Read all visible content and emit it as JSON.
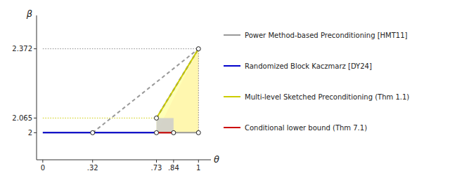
{
  "chart_data": {
    "type": "line",
    "xlabel": "θ",
    "ylabel": "β",
    "xlim": [
      -0.04,
      1.08
    ],
    "ylim": [
      1.88,
      2.52
    ],
    "xticks": [
      0,
      {
        "value": 0.32,
        "label": ".32"
      },
      {
        "value": 0.73,
        "label": ".73"
      },
      {
        "value": 0.84,
        "label": ".84"
      },
      1
    ],
    "yticks": [
      2,
      2.065,
      2.372
    ],
    "series": [
      {
        "type": "area",
        "color": "#FFBBBB",
        "x": [
          0.73,
          1.0,
          1.0
        ],
        "values": [
          2.0,
          2.0,
          2.372
        ]
      },
      {
        "type": "area",
        "color": "#FFFFAA",
        "x": [
          0.73,
          0.73,
          1.0,
          1.0
        ],
        "values": [
          2.0,
          2.065,
          2.372,
          2.0
        ]
      },
      {
        "type": "area",
        "color": "#CCCCCC",
        "x": [
          0.73,
          0.84,
          0.84,
          0.73
        ],
        "values": [
          2.0,
          2.0,
          2.065,
          2.065
        ]
      },
      {
        "color": "#888888",
        "line_style": "dotted",
        "x": [
          0,
          1.0
        ],
        "values": [
          2.372,
          2.372
        ]
      },
      {
        "color": "#CCCC00",
        "line_style": "dotted",
        "x": [
          0,
          0.73
        ],
        "values": [
          2.065,
          2.065
        ]
      },
      {
        "color": "#888888",
        "line_style": "dotted",
        "x": [
          1.0,
          1.0
        ],
        "values": [
          2.0,
          2.372
        ]
      },
      {
        "name": "Power Method-based Preconditioning [HMT11]",
        "color": "#999999",
        "line_style": "solid",
        "x": [
          0,
          1.0
        ],
        "values": [
          2.0,
          2.0
        ]
      },
      {
        "color": "#999999",
        "line_style": "dashed",
        "x": [
          0.32,
          1.0
        ],
        "values": [
          2.0,
          2.372
        ]
      },
      {
        "name": "Randomized Block Kaczmarz [DY24]",
        "color": "#0000CC",
        "line_style": "solid",
        "x": [
          0,
          0.73
        ],
        "values": [
          2.0,
          2.0
        ]
      },
      {
        "color": "#0000CC",
        "line_style": "dashed",
        "x": [
          0.73,
          1.0
        ],
        "values": [
          2.065,
          2.372
        ]
      },
      {
        "name": "Multi-level Sketched Preconditioning (Thm 1.1)",
        "color": "#CCCC00",
        "line_style": "solid",
        "x": [
          0.73,
          1.0
        ],
        "values": [
          2.065,
          2.372
        ]
      },
      {
        "name": "Conditional lower bound (Thm 7.1)",
        "color": "#CC0000",
        "line_style": "solid",
        "x": [
          0.73,
          0.84
        ],
        "values": [
          2.0,
          2.0
        ]
      },
      {
        "type": "scatter",
        "color": "#FFFFFF",
        "marker": "circle",
        "x": [
          0.32,
          0.73,
          0.73,
          0.84,
          1.0,
          1.0
        ],
        "values": [
          2.0,
          2.0,
          2.065,
          2.0,
          2.0,
          2.372
        ]
      }
    ]
  }
}
